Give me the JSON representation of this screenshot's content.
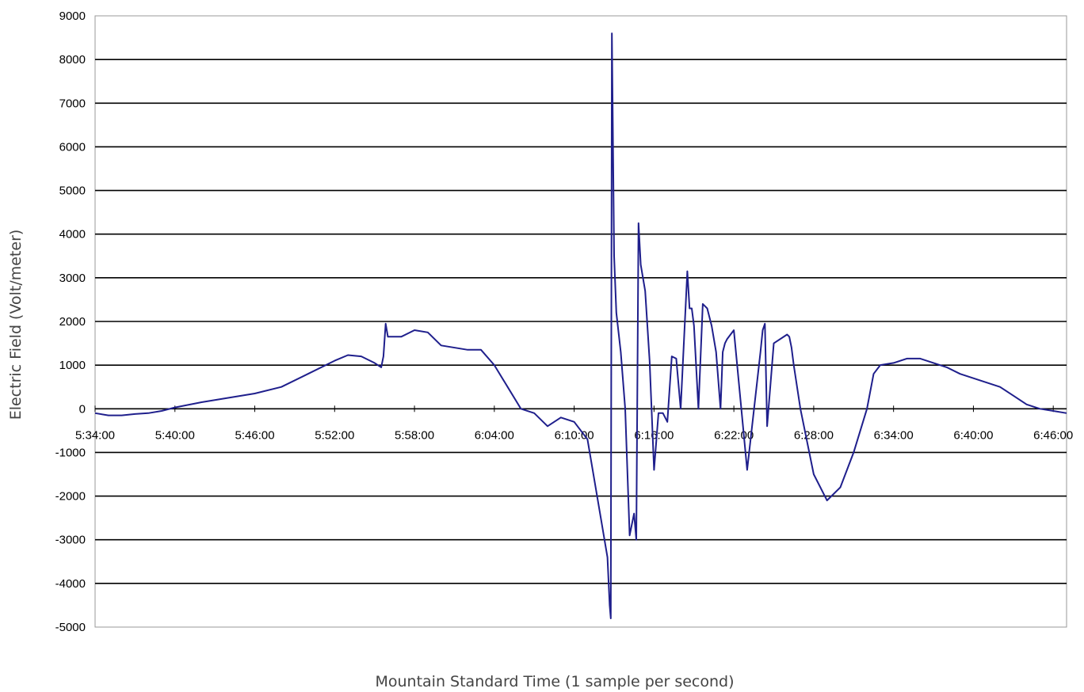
{
  "chart_data": {
    "type": "line",
    "title": "",
    "xlabel": "Mountain Standard Time (1 sample per second)",
    "ylabel": "Electric Field (Volt/meter)",
    "ylim": [
      -5000,
      9000
    ],
    "xlim": [
      "5:34:00",
      "6:47:00"
    ],
    "grid": true,
    "legend": "none",
    "colors": {
      "line": "#1f1f8c",
      "grid": "#000000",
      "plot_border": "#9a9a9a"
    },
    "x_tick_labels": [
      "5:34:00",
      "5:40:00",
      "5:46:00",
      "5:52:00",
      "5:58:00",
      "6:04:00",
      "6:10:00",
      "6:16:00",
      "6:22:00",
      "6:28:00",
      "6:34:00",
      "6:40:00",
      "6:46:00"
    ],
    "y_tick_labels": [
      "9000",
      "8000",
      "7000",
      "6000",
      "5000",
      "4000",
      "3000",
      "2000",
      "1000",
      "0",
      "-1000",
      "-2000",
      "-3000",
      "-4000",
      "-5000"
    ],
    "series": [
      {
        "values_description_x": "time",
        "x": [
          "5:34:00",
          "5:35:00",
          "5:36:00",
          "5:37:00",
          "5:38:00",
          "5:39:00",
          "5:40:00",
          "5:42:00",
          "5:44:00",
          "5:46:00",
          "5:48:00",
          "5:50:00",
          "5:52:00",
          "5:53:00",
          "5:54:00",
          "5:55:00",
          "5:55:30",
          "5:55:40",
          "5:55:50",
          "5:56:00",
          "5:57:00",
          "5:58:00",
          "5:59:00",
          "6:00:00",
          "6:02:00",
          "6:03:00",
          "6:04:00",
          "6:05:00",
          "6:06:00",
          "6:07:00",
          "6:08:00",
          "6:09:00",
          "6:10:00",
          "6:11:00",
          "6:12:00",
          "6:12:30",
          "6:12:40",
          "6:12:45",
          "6:12:50",
          "6:13:00",
          "6:13:10",
          "6:13:30",
          "6:13:50",
          "6:14:10",
          "6:14:30",
          "6:14:40",
          "6:14:50",
          "6:15:00",
          "6:15:20",
          "6:15:40",
          "6:16:00",
          "6:16:20",
          "6:16:40",
          "6:17:00",
          "6:17:20",
          "6:17:40",
          "6:18:00",
          "6:18:30",
          "6:18:40",
          "6:18:50",
          "6:19:00",
          "6:19:20",
          "6:19:40",
          "6:20:00",
          "6:20:20",
          "6:20:40",
          "6:21:00",
          "6:21:10",
          "6:21:20",
          "6:21:30",
          "6:22:00",
          "6:23:00",
          "6:24:00",
          "6:24:10",
          "6:24:20",
          "6:24:30",
          "6:25:00",
          "6:26:00",
          "6:26:10",
          "6:26:20",
          "6:26:30",
          "6:27:00",
          "6:28:00",
          "6:29:00",
          "6:30:00",
          "6:31:00",
          "6:32:00",
          "6:32:30",
          "6:33:00",
          "6:34:00",
          "6:35:00",
          "6:36:00",
          "6:37:00",
          "6:38:00",
          "6:39:00",
          "6:40:00",
          "6:41:00",
          "6:42:00",
          "6:43:00",
          "6:44:00",
          "6:45:00",
          "6:46:00",
          "6:47:00"
        ],
        "y": [
          -100,
          -150,
          -150,
          -120,
          -100,
          -50,
          30,
          150,
          250,
          350,
          500,
          800,
          1100,
          1230,
          1200,
          1050,
          950,
          1200,
          1950,
          1650,
          1650,
          1800,
          1750,
          1450,
          1350,
          1350,
          1000,
          500,
          0,
          -100,
          -400,
          -200,
          -300,
          -700,
          -2500,
          -3400,
          -4500,
          -4800,
          8600,
          3500,
          2200,
          1300,
          0,
          -2900,
          -2400,
          -3000,
          4250,
          3300,
          2700,
          1100,
          -1400,
          -100,
          -100,
          -300,
          1200,
          1150,
          0,
          3150,
          2300,
          2300,
          1900,
          0,
          2400,
          2300,
          1900,
          1300,
          0,
          1300,
          1500,
          1600,
          1800,
          -1400,
          1300,
          1800,
          1950,
          -400,
          1500,
          1700,
          1650,
          1400,
          1000,
          0,
          -1500,
          -2100,
          -1800,
          -1000,
          0,
          800,
          1000,
          1050,
          1150,
          1150,
          1050,
          950,
          800,
          700,
          600,
          500,
          300,
          100,
          0,
          -50,
          -100
        ]
      }
    ]
  }
}
